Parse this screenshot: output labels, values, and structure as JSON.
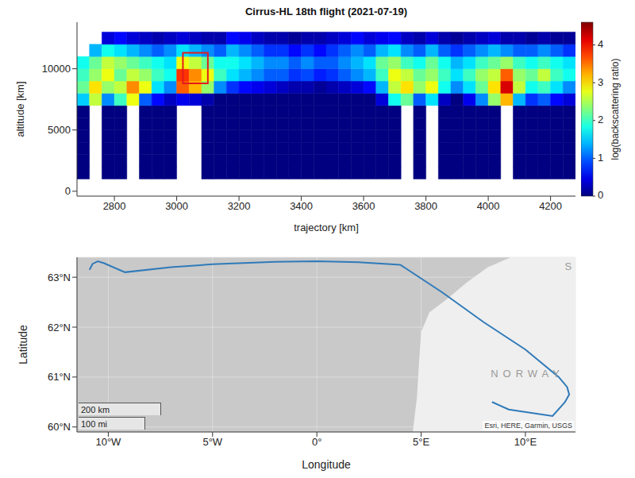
{
  "chart_data": [
    {
      "type": "heatmap",
      "title": "Cirrus-HL 18th flight (2021-07-19)",
      "x_label": "trajectory [km]",
      "y_label": "altitude [km]",
      "x": [
        2700,
        2740,
        2780,
        2820,
        2860,
        2900,
        2940,
        2980,
        3020,
        3060,
        3100,
        3140,
        3180,
        3220,
        3260,
        3300,
        3340,
        3380,
        3420,
        3460,
        3500,
        3540,
        3580,
        3620,
        3660,
        3700,
        3740,
        3780,
        3820,
        3860,
        3900,
        3940,
        3980,
        4020,
        4060,
        4100,
        4140,
        4180,
        4220,
        4260
      ],
      "y": [
        500,
        1500,
        2500,
        3500,
        4500,
        5500,
        6500,
        7500,
        8500,
        9500,
        10500,
        11500,
        12500
      ],
      "cells": [
        [
          null,
          null,
          null,
          null,
          null,
          null,
          null,
          null,
          null,
          null,
          null,
          null,
          null,
          null,
          null,
          null,
          null,
          null,
          null,
          null,
          null,
          null,
          null,
          null,
          null,
          null,
          null,
          null,
          null,
          null,
          null,
          null,
          null,
          null,
          null,
          null,
          null,
          null,
          null,
          null
        ],
        [
          0,
          null,
          0,
          0,
          null,
          0,
          0,
          0,
          null,
          null,
          0,
          0,
          0,
          0,
          0,
          0,
          0,
          0,
          0,
          0,
          0,
          0,
          0,
          0,
          0,
          0,
          null,
          0,
          null,
          0,
          0,
          0,
          0,
          0,
          null,
          0,
          0,
          0,
          0,
          0
        ],
        [
          0,
          null,
          0,
          0,
          null,
          0,
          0,
          0,
          null,
          null,
          0,
          0,
          0,
          0,
          0,
          0,
          0,
          0,
          0,
          0,
          0,
          0,
          0,
          0,
          0,
          0,
          null,
          0,
          null,
          0,
          0,
          0,
          0,
          0,
          null,
          0,
          0,
          0,
          0,
          0
        ],
        [
          0,
          null,
          0,
          0,
          null,
          0,
          0,
          0,
          null,
          null,
          0,
          0,
          0,
          0,
          0,
          0,
          0,
          0,
          0,
          0,
          0,
          0,
          0,
          0,
          0,
          0,
          null,
          0,
          null,
          0,
          0,
          0,
          0,
          0,
          null,
          0,
          0,
          0,
          0,
          0
        ],
        [
          0,
          null,
          0,
          0,
          null,
          0,
          0,
          0,
          null,
          null,
          0,
          0,
          0,
          0,
          0,
          0,
          0,
          0,
          0,
          0,
          0,
          0,
          0,
          0,
          0,
          0,
          null,
          0,
          null,
          0,
          0,
          0,
          0,
          0,
          null,
          0,
          0,
          0,
          0,
          0
        ],
        [
          0,
          null,
          0,
          0,
          null,
          0,
          0,
          0,
          null,
          null,
          0,
          0,
          0,
          0,
          0,
          0,
          0,
          0,
          0,
          0,
          0,
          0,
          0,
          0,
          0,
          0,
          null,
          0,
          null,
          0,
          0,
          0,
          0,
          0,
          null,
          0,
          0,
          0,
          0,
          0
        ],
        [
          0,
          null,
          0,
          0,
          null,
          0,
          0,
          0,
          null,
          null,
          0,
          0,
          0,
          0,
          0,
          0,
          0,
          0,
          0,
          0,
          0,
          0,
          0,
          0,
          0,
          0,
          null,
          0,
          null,
          0,
          0,
          0,
          0,
          0,
          null,
          0,
          0,
          0,
          0,
          0
        ],
        [
          1.5,
          2.6,
          1.2,
          2.0,
          2.8,
          1.0,
          0.6,
          0.3,
          0.5,
          0.4,
          0.2,
          0,
          0,
          0,
          0,
          0,
          0,
          0,
          0,
          0,
          0,
          0,
          0,
          0,
          0.4,
          1.8,
          2.2,
          1.0,
          1.6,
          0.3,
          0,
          0.5,
          1.2,
          2.4,
          3.2,
          1.4,
          0.8,
          1.0,
          0.6,
          0.4
        ],
        [
          2.2,
          3.0,
          2.4,
          2.6,
          3.4,
          2.8,
          1.6,
          1.2,
          3.6,
          3.2,
          2.4,
          1.2,
          0.8,
          0.6,
          0.5,
          0.4,
          0.3,
          0.2,
          0.2,
          0.1,
          0.2,
          0.3,
          0.4,
          0.6,
          1.4,
          2.6,
          3.0,
          2.4,
          2.8,
          1.8,
          1.2,
          1.6,
          2.2,
          3.0,
          4.2,
          2.6,
          1.8,
          2.0,
          1.6,
          1.2
        ],
        [
          2.0,
          2.4,
          2.8,
          2.2,
          2.6,
          2.4,
          2.0,
          1.8,
          3.8,
          3.4,
          2.8,
          2.0,
          1.6,
          1.4,
          1.2,
          1.0,
          1.0,
          0.8,
          0.9,
          0.7,
          0.8,
          1.0,
          1.2,
          1.4,
          2.0,
          2.8,
          2.6,
          2.2,
          2.4,
          2.0,
          1.6,
          2.0,
          2.4,
          2.6,
          3.6,
          2.4,
          2.2,
          2.6,
          2.0,
          1.8
        ],
        [
          1.8,
          2.2,
          2.6,
          2.4,
          2.2,
          2.0,
          1.8,
          1.6,
          2.8,
          2.6,
          2.2,
          1.8,
          1.8,
          1.6,
          1.4,
          1.2,
          1.2,
          1.0,
          1.2,
          1.0,
          1.0,
          1.2,
          1.4,
          1.6,
          2.2,
          2.4,
          2.0,
          1.8,
          2.2,
          1.8,
          1.4,
          1.6,
          2.0,
          2.2,
          2.4,
          2.0,
          1.8,
          2.0,
          1.8,
          1.6
        ],
        [
          null,
          1.4,
          1.8,
          1.6,
          1.4,
          1.2,
          1.0,
          1.2,
          1.6,
          1.4,
          1.2,
          1.0,
          1.4,
          1.2,
          1.0,
          0.8,
          0.8,
          0.6,
          0.8,
          0.6,
          0.8,
          1.0,
          1.2,
          1.0,
          1.4,
          1.6,
          1.2,
          1.0,
          1.4,
          1.0,
          0.8,
          1.0,
          1.2,
          1.4,
          1.2,
          1.0,
          1.0,
          1.2,
          1.0,
          0.8
        ],
        [
          null,
          null,
          0.4,
          0.6,
          0.4,
          0.3,
          0.2,
          0.3,
          0.4,
          0.3,
          0.2,
          0.2,
          0.6,
          0.5,
          0.3,
          0.2,
          0.2,
          0.1,
          0.2,
          0.2,
          0.3,
          0.4,
          0.6,
          0.4,
          0.5,
          0.6,
          0.3,
          0.2,
          0.4,
          0.2,
          0.1,
          0.2,
          0.3,
          0.4,
          0.2,
          0.2,
          0.1,
          0.2,
          0.1,
          0.1
        ]
      ],
      "colorbar": {
        "label": "log(backscattering ratio)",
        "range": [
          0,
          4.6
        ],
        "ticks": [
          0,
          1,
          2,
          3,
          4
        ]
      },
      "xlim": [
        2680,
        4280
      ],
      "xticks": [
        2800,
        3000,
        3200,
        3400,
        3600,
        3800,
        4000,
        4200
      ],
      "ylim": [
        -400,
        13800
      ],
      "yticks": [
        0,
        5000,
        10000
      ],
      "box": {
        "x": [
          3020,
          3100
        ],
        "y": [
          8800,
          11300
        ],
        "color": "#e41a1c"
      }
    },
    {
      "type": "line",
      "x_label": "Longitude",
      "y_label": "Latitude",
      "x": [
        -10.9,
        -10.75,
        -10.5,
        -10.2,
        -9.2,
        -7,
        -5,
        -2,
        0,
        2,
        4.0,
        6,
        8,
        10,
        11.6,
        12.0,
        12.1,
        11.9,
        11.3,
        9.2,
        8.4
      ],
      "values": [
        63.15,
        63.27,
        63.32,
        63.28,
        63.1,
        63.2,
        63.26,
        63.31,
        63.32,
        63.3,
        63.25,
        62.7,
        62.1,
        61.55,
        61.0,
        60.8,
        60.65,
        60.5,
        60.22,
        60.35,
        60.5
      ],
      "color": "#2f7ab9",
      "xlim": [
        -11.5,
        12.4
      ],
      "xticks": [
        {
          "value": -10,
          "label": "10°W"
        },
        {
          "value": -5,
          "label": "5°W"
        },
        {
          "value": 0,
          "label": "0°"
        },
        {
          "value": 5,
          "label": "5°E"
        },
        {
          "value": 10,
          "label": "10°E"
        }
      ],
      "ylim": [
        59.9,
        63.4
      ],
      "yticks": [
        {
          "value": 60,
          "label": "60°N"
        },
        {
          "value": 61,
          "label": "61°N"
        },
        {
          "value": 62,
          "label": "62°N"
        },
        {
          "value": 63,
          "label": "63°N"
        }
      ],
      "grid": true,
      "sea": {
        "color": "#c9c9c9"
      },
      "land": {
        "x": [
          4.6,
          4.8,
          4.9,
          5.0,
          5.4,
          6.2,
          7.2,
          8.2,
          9.3,
          12.4
        ],
        "values": [
          59.9,
          60.6,
          61.3,
          61.9,
          62.3,
          62.55,
          62.9,
          63.2,
          63.4,
          63.4
        ],
        "color": "#efefef"
      },
      "labels": [
        {
          "text": "NORWAY",
          "x": 10.1,
          "y": 61.05
        },
        {
          "text": "S",
          "x": 12.05,
          "y": 63.2
        }
      ],
      "scale_bar": [
        "200 km",
        "100 mi"
      ],
      "attribution": "Esri, HERE, Garmin, USGS"
    }
  ]
}
